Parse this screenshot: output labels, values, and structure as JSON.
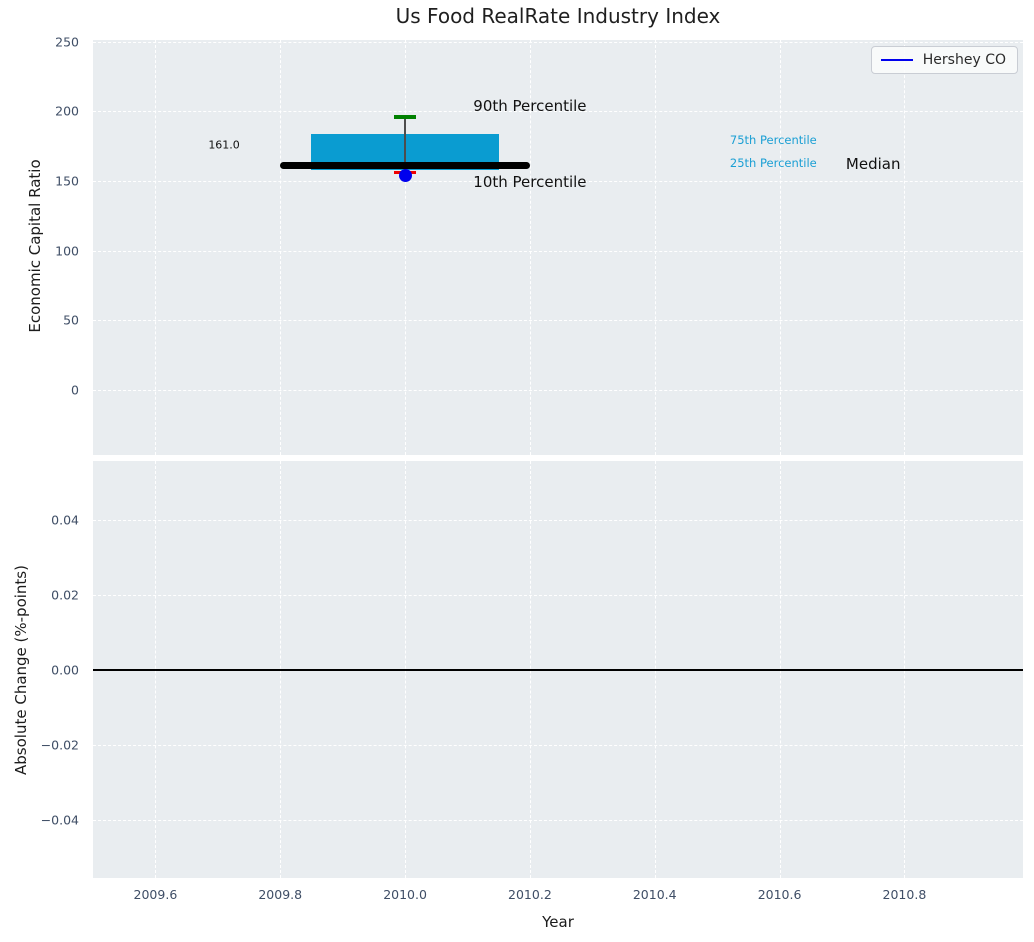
{
  "figure": {
    "title": "Us Food RealRate Industry Index",
    "background": "#ffffff"
  },
  "legend": {
    "label": "Hershey CO",
    "line_color": "#0000ee"
  },
  "colors": {
    "plot_bg": "#e9edf0",
    "grid": "#ffffff",
    "tick_label": "#3f4e66",
    "title": "#1f1f1f",
    "box_fill": "#0a9cd1",
    "median_line": "#000000",
    "p90_cap": "#008000",
    "p10_cap": "#f00000",
    "whisker": "#4d4d4d",
    "company_point": "#0000ee",
    "percentile_label": "#1a9fd4",
    "zero_line": "#000000"
  },
  "chart_data": [
    {
      "type": "boxplot",
      "subplot": "top",
      "title": "Us Food RealRate Industry Index",
      "ylabel": "Economic Capital Ratio",
      "xlim": [
        2009.5,
        2010.99
      ],
      "ylim": [
        -46.7,
        251.2
      ],
      "xticks": [
        2009.6,
        2009.8,
        2010.0,
        2010.2,
        2010.4,
        2010.6,
        2010.8
      ],
      "yticks": [
        0,
        50,
        100,
        150,
        200,
        250
      ],
      "ytick_labels": [
        "0",
        "50",
        "100",
        "150",
        "200",
        "250"
      ],
      "show_xtick_labels": false,
      "grid": "white-dashed",
      "legend_entries": [
        {
          "label": "Hershey CO",
          "color": "#0000ee"
        }
      ],
      "box": {
        "x_center": 2010.0,
        "box_left": 2009.85,
        "box_right": 2010.15,
        "median": 161.0,
        "median_line_left": 2009.8,
        "median_line_right": 2010.2,
        "p90": 196,
        "p75": 184,
        "p25": 158,
        "p10": 156,
        "cap_half_width": 0.018
      },
      "company_point": {
        "name": "Hershey CO",
        "x": 2010.0,
        "y": 154
      },
      "annotations": [
        {
          "text": "161.0",
          "x": 2009.71,
          "y": 176.0,
          "size": 11,
          "color": "#111111"
        },
        {
          "text": "90th Percentile",
          "x": 2010.2,
          "y": 204.0,
          "size": 15,
          "color": "#111111"
        },
        {
          "text": "10th Percentile",
          "x": 2010.2,
          "y": 149.0,
          "size": 15,
          "color": "#111111"
        },
        {
          "text": "75th Percentile",
          "x": 2010.59,
          "y": 179.4,
          "size": 11.5,
          "color": "#1a9fd4"
        },
        {
          "text": "25th Percentile",
          "x": 2010.59,
          "y": 162.9,
          "size": 11.5,
          "color": "#1a9fd4"
        },
        {
          "text": "Median",
          "x": 2010.75,
          "y": 162.2,
          "size": 15,
          "color": "#111111"
        }
      ]
    },
    {
      "type": "line",
      "subplot": "bottom",
      "ylabel": "Absolute Change (%-points)",
      "xlabel": "Year",
      "xlim": [
        2009.5,
        2010.99
      ],
      "ylim": [
        -0.0556,
        0.0557
      ],
      "xticks": [
        2009.6,
        2009.8,
        2010.0,
        2010.2,
        2010.4,
        2010.6,
        2010.8
      ],
      "xtick_labels": [
        "2009.6",
        "2009.8",
        "2010.0",
        "2010.2",
        "2010.4",
        "2010.6",
        "2010.8"
      ],
      "show_xtick_labels": true,
      "yticks": [
        0.04,
        0.02,
        0.0,
        -0.02,
        -0.04
      ],
      "ytick_labels": [
        "0.04",
        "0.02",
        "0.00",
        "−0.02",
        "−0.04"
      ],
      "grid": "white-dashed",
      "zero_line": {
        "y": 0.0
      }
    }
  ]
}
